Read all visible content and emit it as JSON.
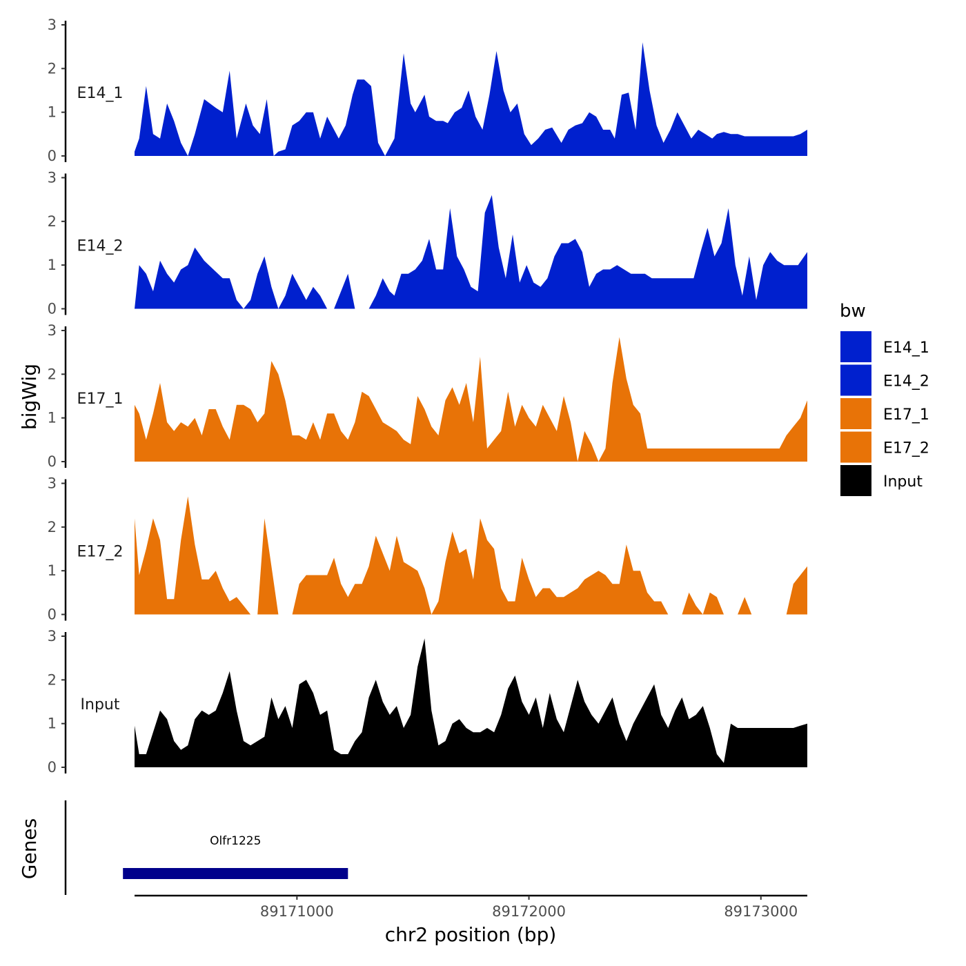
{
  "chart_data": {
    "type": "area",
    "title": "",
    "xlabel": "chr2 position (bp)",
    "ylabel": "bigWig",
    "genes_label": "Genes",
    "xlim": [
      89170300,
      89173200
    ],
    "ylim": [
      0,
      3
    ],
    "y_ticks": [
      0,
      1,
      2,
      3
    ],
    "x_ticks": [
      89171000,
      89172000,
      89173000
    ],
    "x_tick_labels": [
      "89171000",
      "89172000",
      "89173000"
    ],
    "legend": {
      "title": "bw",
      "entries": [
        {
          "name": "E14_1",
          "color": "#0020CE"
        },
        {
          "name": "E14_2",
          "color": "#0020CE"
        },
        {
          "name": "E17_1",
          "color": "#E87307"
        },
        {
          "name": "E17_2",
          "color": "#E87307"
        },
        {
          "name": "Input",
          "color": "#000000"
        }
      ]
    },
    "series": [
      {
        "name": "E14_1",
        "color": "#0020CE",
        "x": [
          89170300,
          89170320,
          89170350,
          89170380,
          89170410,
          89170440,
          89170470,
          89170500,
          89170530,
          89170560,
          89170600,
          89170650,
          89170680,
          89170710,
          89170740,
          89170780,
          89170810,
          89170840,
          89170870,
          89170900,
          89170920,
          89170950,
          89170980,
          89171010,
          89171040,
          89171070,
          89171100,
          89171130,
          89171150,
          89171180,
          89171210,
          89171240,
          89171260,
          89171290,
          89171320,
          89171350,
          89171380,
          89171420,
          89171460,
          89171490,
          89171510,
          89171550,
          89171570,
          89171600,
          89171630,
          89171650,
          89171680,
          89171710,
          89171740,
          89171770,
          89171800,
          89171830,
          89171860,
          89171890,
          89171920,
          89171950,
          89171980,
          89172010,
          89172040,
          89172070,
          89172100,
          89172140,
          89172170,
          89172200,
          89172230,
          89172260,
          89172290,
          89172320,
          89172350,
          89172370,
          89172400,
          89172430,
          89172460,
          89172490,
          89172520,
          89172550,
          89172580,
          89172610,
          89172640,
          89172670,
          89172700,
          89172730,
          89172760,
          89172790,
          89172810,
          89172840,
          89172870,
          89172900,
          89172930,
          89172960,
          89172990,
          89173020,
          89173050,
          89173080,
          89173110,
          89173140,
          89173170,
          89173200
        ],
        "values": [
          0.1,
          0.4,
          1.6,
          0.5,
          0.4,
          1.2,
          0.8,
          0.3,
          0,
          0.5,
          1.3,
          1.1,
          1.0,
          1.95,
          0.4,
          1.2,
          0.7,
          0.5,
          1.3,
          0,
          0.1,
          0.15,
          0.7,
          0.8,
          1.0,
          1.0,
          0.4,
          0.9,
          0.7,
          0.4,
          0.7,
          1.4,
          1.75,
          1.75,
          1.6,
          0.3,
          0,
          0.4,
          2.35,
          1.2,
          1.0,
          1.4,
          0.9,
          0.8,
          0.8,
          0.75,
          1.0,
          1.1,
          1.5,
          0.9,
          0.6,
          1.4,
          2.4,
          1.5,
          1.0,
          1.2,
          0.5,
          0.25,
          0.4,
          0.6,
          0.65,
          0.3,
          0.6,
          0.7,
          0.75,
          1.0,
          0.9,
          0.6,
          0.6,
          0.4,
          1.4,
          1.45,
          0.6,
          2.6,
          1.5,
          0.7,
          0.3,
          0.6,
          1.0,
          0.7,
          0.4,
          0.6,
          0.5,
          0.4,
          0.5,
          0.55,
          0.5,
          0.5,
          0.45,
          0.45,
          0.45,
          0.45,
          0.45,
          0.45,
          0.45,
          0.45,
          0.5,
          0.6
        ]
      },
      {
        "name": "E14_2",
        "color": "#0020CE",
        "x": [
          89170300,
          89170320,
          89170350,
          89170380,
          89170410,
          89170440,
          89170470,
          89170500,
          89170530,
          89170560,
          89170600,
          89170640,
          89170680,
          89170710,
          89170740,
          89170770,
          89170800,
          89170830,
          89170860,
          89170890,
          89170920,
          89170950,
          89170980,
          89171010,
          89171040,
          89171070,
          89171100,
          89171130,
          89171160,
          89171190,
          89171220,
          89171250,
          89171280,
          89171310,
          89171340,
          89171370,
          89171400,
          89171420,
          89171450,
          89171480,
          89171510,
          89171540,
          89171570,
          89171600,
          89171630,
          89171660,
          89171690,
          89171720,
          89171750,
          89171780,
          89171810,
          89171840,
          89171870,
          89171900,
          89171930,
          89171960,
          89171990,
          89172020,
          89172050,
          89172080,
          89172110,
          89172140,
          89172170,
          89172200,
          89172230,
          89172260,
          89172290,
          89172320,
          89172350,
          89172380,
          89172410,
          89172440,
          89172470,
          89172500,
          89172530,
          89172560,
          89172590,
          89172620,
          89172650,
          89172680,
          89172710,
          89172740,
          89172770,
          89172800,
          89172830,
          89172860,
          89172890,
          89172920,
          89172950,
          89172980,
          89173010,
          89173040,
          89173070,
          89173100,
          89173130,
          89173160,
          89173200
        ],
        "values": [
          0.0,
          1.0,
          0.8,
          0.4,
          1.1,
          0.8,
          0.6,
          0.9,
          1.0,
          1.4,
          1.1,
          0.9,
          0.7,
          0.7,
          0.2,
          0.0,
          0.2,
          0.8,
          1.2,
          0.5,
          0.0,
          0.3,
          0.8,
          0.5,
          0.2,
          0.5,
          0.3,
          0.0,
          0.0,
          0.4,
          0.8,
          0.0,
          0.0,
          0.0,
          0.3,
          0.7,
          0.4,
          0.3,
          0.8,
          0.8,
          0.9,
          1.1,
          1.6,
          0.9,
          0.9,
          2.3,
          1.2,
          0.9,
          0.5,
          0.4,
          2.2,
          2.6,
          1.4,
          0.7,
          1.7,
          0.6,
          1.0,
          0.6,
          0.5,
          0.7,
          1.2,
          1.5,
          1.5,
          1.6,
          1.3,
          0.5,
          0.8,
          0.9,
          0.9,
          1.0,
          0.9,
          0.8,
          0.8,
          0.8,
          0.7,
          0.7,
          0.7,
          0.7,
          0.7,
          0.7,
          0.7,
          1.3,
          1.85,
          1.2,
          1.5,
          2.3,
          1.0,
          0.3,
          1.2,
          0.2,
          1.0,
          1.3,
          1.1,
          1.0,
          1.0,
          1.0,
          1.3
        ]
      },
      {
        "name": "E17_1",
        "color": "#E87307",
        "x": [
          89170300,
          89170320,
          89170350,
          89170380,
          89170410,
          89170440,
          89170470,
          89170500,
          89170530,
          89170560,
          89170590,
          89170620,
          89170650,
          89170680,
          89170710,
          89170740,
          89170770,
          89170800,
          89170830,
          89170860,
          89170890,
          89170920,
          89170950,
          89170980,
          89171010,
          89171040,
          89171070,
          89171100,
          89171130,
          89171160,
          89171190,
          89171220,
          89171250,
          89171280,
          89171310,
          89171340,
          89171370,
          89171400,
          89171430,
          89171460,
          89171490,
          89171520,
          89171550,
          89171580,
          89171610,
          89171640,
          89171670,
          89171700,
          89171730,
          89171760,
          89171790,
          89171820,
          89171850,
          89171880,
          89171910,
          89171940,
          89171970,
          89172000,
          89172030,
          89172060,
          89172090,
          89172120,
          89172150,
          89172180,
          89172210,
          89172240,
          89172270,
          89172300,
          89172330,
          89172360,
          89172390,
          89172420,
          89172450,
          89172480,
          89172510,
          89172540,
          89172570,
          89172600,
          89172630,
          89172660,
          89172690,
          89172720,
          89172750,
          89172780,
          89172810,
          89172840,
          89172870,
          89172900,
          89172930,
          89172960,
          89172990,
          89173020,
          89173050,
          89173080,
          89173110,
          89173140,
          89173170,
          89173200
        ],
        "values": [
          1.3,
          1.1,
          0.5,
          1.1,
          1.8,
          0.9,
          0.7,
          0.9,
          0.8,
          1.0,
          0.6,
          1.2,
          1.2,
          0.8,
          0.5,
          1.3,
          1.3,
          1.2,
          0.9,
          1.1,
          2.3,
          2.0,
          1.4,
          0.6,
          0.6,
          0.5,
          0.9,
          0.5,
          1.1,
          1.1,
          0.7,
          0.5,
          0.9,
          1.6,
          1.5,
          1.2,
          0.9,
          0.8,
          0.7,
          0.5,
          0.4,
          1.5,
          1.2,
          0.8,
          0.6,
          1.4,
          1.7,
          1.3,
          1.8,
          0.9,
          2.4,
          0.3,
          0.5,
          0.7,
          1.6,
          0.8,
          1.3,
          1.0,
          0.8,
          1.3,
          1.0,
          0.7,
          1.5,
          0.9,
          0.0,
          0.7,
          0.4,
          0.0,
          0.3,
          1.8,
          2.85,
          1.9,
          1.3,
          1.1,
          0.3,
          0.3,
          0.3,
          0.3,
          0.3,
          0.3,
          0.3,
          0.3,
          0.3,
          0.3,
          0.3,
          0.3,
          0.3,
          0.3,
          0.3,
          0.3,
          0.3,
          0.3,
          0.3,
          0.3,
          0.6,
          0.8,
          1.0,
          1.4
        ]
      },
      {
        "name": "E17_2",
        "color": "#E87307",
        "x": [
          89170300,
          89170320,
          89170350,
          89170380,
          89170410,
          89170440,
          89170470,
          89170500,
          89170530,
          89170560,
          89170590,
          89170620,
          89170650,
          89170680,
          89170710,
          89170740,
          89170770,
          89170800,
          89170830,
          89170860,
          89170890,
          89170920,
          89170950,
          89170980,
          89171010,
          89171040,
          89171070,
          89171100,
          89171130,
          89171160,
          89171190,
          89171220,
          89171250,
          89171280,
          89171310,
          89171340,
          89171370,
          89171400,
          89171430,
          89171460,
          89171490,
          89171520,
          89171550,
          89171580,
          89171610,
          89171640,
          89171670,
          89171700,
          89171730,
          89171760,
          89171790,
          89171820,
          89171850,
          89171880,
          89171910,
          89171940,
          89171970,
          89172000,
          89172030,
          89172060,
          89172090,
          89172120,
          89172150,
          89172180,
          89172210,
          89172240,
          89172270,
          89172300,
          89172330,
          89172360,
          89172390,
          89172420,
          89172450,
          89172480,
          89172510,
          89172540,
          89172570,
          89172600,
          89172630,
          89172660,
          89172690,
          89172720,
          89172750,
          89172780,
          89172810,
          89172840,
          89172870,
          89172900,
          89172930,
          89172960,
          89172990,
          89173020,
          89173050,
          89173080,
          89173110,
          89173140,
          89173170,
          89173200
        ],
        "values": [
          2.2,
          0.9,
          1.5,
          2.2,
          1.7,
          0.35,
          0.35,
          1.7,
          2.7,
          1.6,
          0.8,
          0.8,
          1.0,
          0.6,
          0.3,
          0.4,
          0.2,
          0.0,
          0.0,
          2.2,
          1.1,
          0.0,
          0.0,
          0.0,
          0.7,
          0.9,
          0.9,
          0.9,
          0.9,
          1.3,
          0.7,
          0.4,
          0.7,
          0.7,
          1.1,
          1.8,
          1.4,
          1.0,
          1.8,
          1.2,
          1.1,
          1.0,
          0.6,
          0.0,
          0.3,
          1.2,
          1.9,
          1.4,
          1.5,
          0.8,
          2.2,
          1.7,
          1.5,
          0.6,
          0.3,
          0.3,
          1.3,
          0.8,
          0.4,
          0.6,
          0.6,
          0.4,
          0.4,
          0.5,
          0.6,
          0.8,
          0.9,
          1.0,
          0.9,
          0.7,
          0.7,
          1.6,
          1.0,
          1.0,
          0.5,
          0.3,
          0.3,
          0.0,
          0.0,
          0.0,
          0.5,
          0.2,
          0.0,
          0.5,
          0.4,
          0.0,
          0.0,
          0.0,
          0.4,
          0.0,
          0.0,
          0.0,
          0.0,
          0.0,
          0.0,
          0.7,
          0.9,
          1.1
        ]
      },
      {
        "name": "Input",
        "color": "#000000",
        "x": [
          89170300,
          89170320,
          89170350,
          89170380,
          89170410,
          89170440,
          89170470,
          89170500,
          89170530,
          89170560,
          89170590,
          89170620,
          89170650,
          89170680,
          89170710,
          89170740,
          89170770,
          89170800,
          89170830,
          89170860,
          89170890,
          89170920,
          89170950,
          89170980,
          89171010,
          89171040,
          89171070,
          89171100,
          89171130,
          89171160,
          89171190,
          89171220,
          89171250,
          89171280,
          89171310,
          89171340,
          89171370,
          89171400,
          89171430,
          89171460,
          89171490,
          89171520,
          89171550,
          89171580,
          89171610,
          89171640,
          89171670,
          89171700,
          89171730,
          89171760,
          89171790,
          89171820,
          89171850,
          89171880,
          89171910,
          89171940,
          89171970,
          89172000,
          89172030,
          89172060,
          89172090,
          89172120,
          89172150,
          89172180,
          89172210,
          89172240,
          89172270,
          89172300,
          89172330,
          89172360,
          89172390,
          89172420,
          89172450,
          89172480,
          89172510,
          89172540,
          89172570,
          89172600,
          89172630,
          89172660,
          89172690,
          89172720,
          89172750,
          89172780,
          89172810,
          89172840,
          89172870,
          89172900,
          89172930,
          89172960,
          89172990,
          89173020,
          89173050,
          89173080,
          89173110,
          89173140,
          89173170,
          89173200
        ],
        "values": [
          0.95,
          0.3,
          0.3,
          0.8,
          1.3,
          1.1,
          0.6,
          0.4,
          0.5,
          1.1,
          1.3,
          1.2,
          1.3,
          1.7,
          2.2,
          1.3,
          0.6,
          0.5,
          0.6,
          0.7,
          1.6,
          1.1,
          1.4,
          0.9,
          1.9,
          2.0,
          1.7,
          1.2,
          1.3,
          0.4,
          0.3,
          0.3,
          0.6,
          0.8,
          1.6,
          2.0,
          1.5,
          1.2,
          1.4,
          0.9,
          1.2,
          2.3,
          2.95,
          1.3,
          0.5,
          0.6,
          1.0,
          1.1,
          0.9,
          0.8,
          0.8,
          0.9,
          0.8,
          1.2,
          1.8,
          2.1,
          1.5,
          1.2,
          1.6,
          0.9,
          1.7,
          1.1,
          0.8,
          1.4,
          2.0,
          1.5,
          1.2,
          1.0,
          1.3,
          1.6,
          1.0,
          0.6,
          1.0,
          1.3,
          1.6,
          1.9,
          1.2,
          0.9,
          1.3,
          1.6,
          1.1,
          1.2,
          1.4,
          0.9,
          0.3,
          0.1,
          1.0,
          0.9,
          0.9,
          0.9,
          0.9,
          0.9,
          0.9,
          0.9,
          0.9,
          0.9,
          0.95,
          1.0
        ]
      }
    ],
    "genes": [
      {
        "name": "Olfr1225",
        "start": 89170250,
        "end": 89171220,
        "color": "#00008B"
      }
    ]
  }
}
